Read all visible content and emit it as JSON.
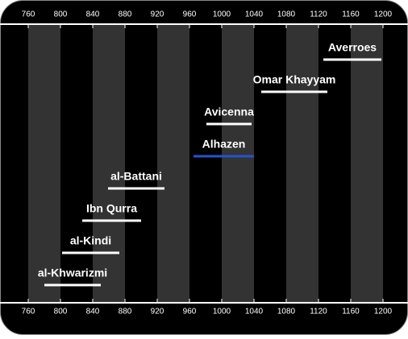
{
  "chart_data": {
    "type": "timeline",
    "xlim": [
      725,
      1231
    ],
    "xticks": [
      760,
      800,
      840,
      880,
      920,
      960,
      1000,
      1040,
      1080,
      1120,
      1160,
      1200
    ],
    "shaded_bands": true,
    "band_color": "#333333",
    "series": [
      {
        "name": "al-Khwarizmi",
        "start": 780,
        "end": 850,
        "color": "#ffffff"
      },
      {
        "name": "al-Kindi",
        "start": 802,
        "end": 873,
        "color": "#ffffff"
      },
      {
        "name": "Ibn Qurra",
        "start": 827,
        "end": 900,
        "color": "#ffffff"
      },
      {
        "name": "al-Battani",
        "start": 859,
        "end": 929,
        "color": "#ffffff"
      },
      {
        "name": "Alhazen",
        "start": 965,
        "end": 1040,
        "color": "#2255cc"
      },
      {
        "name": "Avicenna",
        "start": 981,
        "end": 1037,
        "color": "#ffffff"
      },
      {
        "name": "Omar Khayyam",
        "start": 1049,
        "end": 1131,
        "color": "#ffffff"
      },
      {
        "name": "Averroes",
        "start": 1126,
        "end": 1198,
        "color": "#ffffff"
      }
    ]
  }
}
